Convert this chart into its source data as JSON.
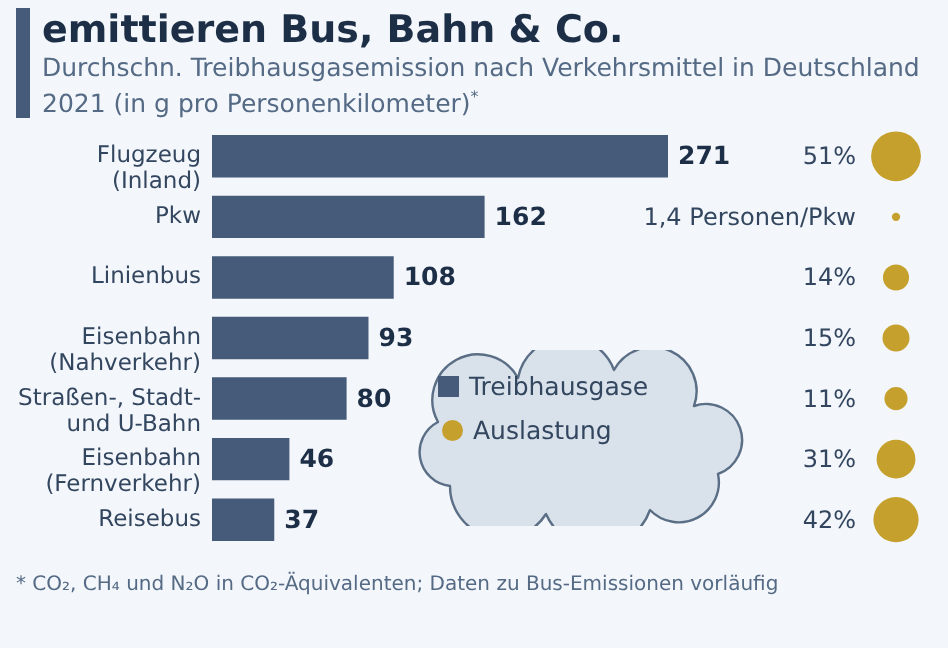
{
  "chart_data": [
    {
      "type": "bar",
      "orientation": "horizontal",
      "title": "emittieren Bus, Bahn & Co.",
      "subtitle": "Durchschn. Treibhausgasemission nach Verkehrsmittel in Deutschland 2021 (in g pro Personenkilometer)$^{*}$",
      "categories": [
        "Flugzeug\n(Inland)",
        "Pkw",
        "Linienbus",
        "Eisenbahn\n(Nahverkehr)",
        "Straßen-, Stadt-\nund U-Bahn",
        "Eisenbahn\n(Fernverkehr)",
        "Reisebus"
      ],
      "series": [
        {
          "name": "Treibhausgase",
          "color": "#455b79",
          "values": [
            271,
            162,
            108,
            93,
            80,
            46,
            37
          ]
        }
      ],
      "data_labels": true,
      "legend": "bottom right",
      "annotations": [
        "* CO₂, CH₄ und N₂O in CO₂-Äquivalenten; Daten zu Bus-Emissionen vorläufig"
      ]
    },
    {
      "type": "other",
      "series": [
        {
          "name": "Auslastung",
          "color": "#c5a02c",
          "values": [
            51,
            1.4,
            14,
            15,
            11,
            31,
            42
          ],
          "value_labels": [
            "51%",
            "1,4 Personen/Pkw",
            "14%",
            "15%",
            "11%",
            "31%",
            "42%"
          ]
        }
      ],
      "legend": "left"
    }
  ]
}
